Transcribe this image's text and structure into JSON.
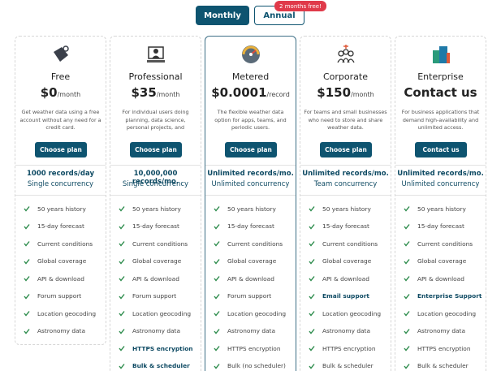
{
  "toggle": {
    "options": [
      "Monthly",
      "Annual"
    ],
    "active": 0,
    "badge": "2 months free!"
  },
  "plans": [
    {
      "name": "Free",
      "price": "$0",
      "unit": "/month",
      "description": "Get weather data using a free account without any need for a credit card.",
      "button": "Choose plan",
      "records": "1000 records/day",
      "concurrency": "Single concurrency",
      "features": [
        {
          "text": "50 years history"
        },
        {
          "text": "15-day forecast"
        },
        {
          "text": "Current conditions"
        },
        {
          "text": "Global coverage"
        },
        {
          "text": "API & download"
        },
        {
          "text": "Forum support"
        },
        {
          "text": "Location geocoding"
        },
        {
          "text": "Astronomy data"
        }
      ]
    },
    {
      "name": "Professional",
      "price": "$35",
      "unit": "/month",
      "description": "For individual users doing planning, data science, personal projects, and prototyping.",
      "button": "Choose plan",
      "records": "10,000,000 records/mo.",
      "concurrency": "Single concurrency",
      "features": [
        {
          "text": "50 years history"
        },
        {
          "text": "15-day forecast"
        },
        {
          "text": "Current conditions"
        },
        {
          "text": "Global coverage"
        },
        {
          "text": "API & download"
        },
        {
          "text": "Forum support"
        },
        {
          "text": "Location geocoding"
        },
        {
          "text": "Astronomy data"
        },
        {
          "text": "HTTPS encryption",
          "bold": true
        },
        {
          "text": "Bulk & scheduler",
          "bold": true
        }
      ]
    },
    {
      "name": "Metered",
      "price": "$0.0001",
      "unit": "/record",
      "highlight": true,
      "description": "The flexible weather data option for apps, teams, and periodic users.",
      "button": "Choose plan",
      "records": "Unlimited records/mo.",
      "concurrency": "Unlimited concurrency",
      "features": [
        {
          "text": "50 years history"
        },
        {
          "text": "15-day forecast"
        },
        {
          "text": "Current conditions"
        },
        {
          "text": "Global coverage"
        },
        {
          "text": "API & download"
        },
        {
          "text": "Forum support"
        },
        {
          "text": "Location geocoding"
        },
        {
          "text": "Astronomy data"
        },
        {
          "text": "HTTPS encryption"
        },
        {
          "text": "Bulk (no scheduler)"
        }
      ]
    },
    {
      "name": "Corporate",
      "price": "$150",
      "unit": "/month",
      "description": "For teams and small businesses who need to store and share weather data.",
      "button": "Choose plan",
      "records": "Unlimited records/mo.",
      "concurrency": "Team concurrency",
      "features": [
        {
          "text": "50 years history"
        },
        {
          "text": "15-day forecast"
        },
        {
          "text": "Current conditions"
        },
        {
          "text": "Global coverage"
        },
        {
          "text": "API & download"
        },
        {
          "text": "Email support",
          "bold": true
        },
        {
          "text": "Location geocoding"
        },
        {
          "text": "Astronomy data"
        },
        {
          "text": "HTTPS encryption"
        },
        {
          "text": "Bulk & scheduler"
        }
      ]
    },
    {
      "name": "Enterprise",
      "price": "Contact us",
      "description": "For business applications that demand high-availability and unlimited access.",
      "button": "Contact us",
      "records": "Unlimited records/mo.",
      "concurrency": "Unlimited concurrency",
      "features": [
        {
          "text": "50 years history"
        },
        {
          "text": "15-day forecast"
        },
        {
          "text": "Current conditions"
        },
        {
          "text": "Global coverage"
        },
        {
          "text": "API & download"
        },
        {
          "text": "Enterprise Support",
          "bold": true
        },
        {
          "text": "Location geocoding"
        },
        {
          "text": "Astronomy data"
        },
        {
          "text": "HTTPS encryption"
        },
        {
          "text": "Bulk & scheduler"
        }
      ]
    }
  ]
}
